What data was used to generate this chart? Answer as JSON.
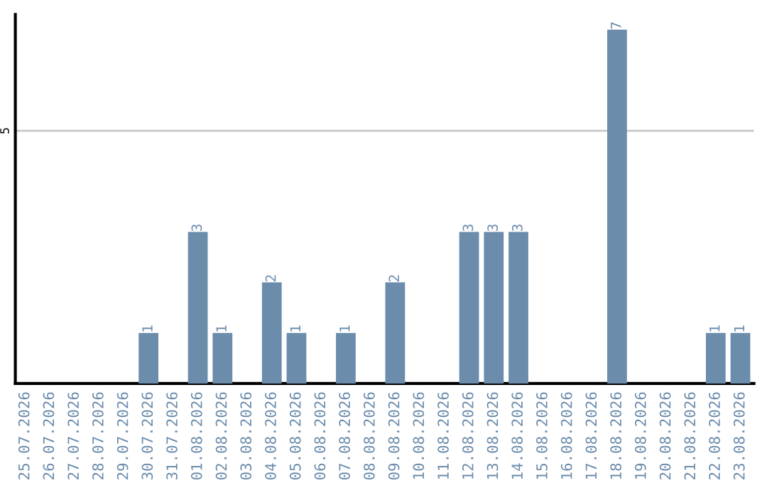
{
  "chart_data": {
    "type": "bar",
    "categories": [
      "25.07.2026",
      "26.07.2026",
      "27.07.2026",
      "28.07.2026",
      "29.07.2026",
      "30.07.2026",
      "31.07.2026",
      "01.08.2026",
      "02.08.2026",
      "03.08.2026",
      "04.08.2026",
      "05.08.2026",
      "06.08.2026",
      "07.08.2026",
      "08.08.2026",
      "09.08.2026",
      "10.08.2026",
      "11.08.2026",
      "12.08.2026",
      "13.08.2026",
      "14.08.2026",
      "15.08.2026",
      "16.08.2026",
      "17.08.2026",
      "18.08.2026",
      "19.08.2026",
      "20.08.2026",
      "21.08.2026",
      "22.08.2026",
      "23.08.2026"
    ],
    "values": [
      0,
      0,
      0,
      0,
      0,
      1,
      0,
      3,
      1,
      0,
      2,
      1,
      0,
      1,
      0,
      2,
      0,
      0,
      3,
      3,
      3,
      0,
      0,
      0,
      7,
      0,
      0,
      0,
      1,
      1
    ],
    "value_labels": [
      null,
      null,
      null,
      null,
      null,
      "1",
      null,
      "3",
      "1",
      null,
      "2",
      "1",
      null,
      "1",
      null,
      "2",
      null,
      null,
      "3",
      "3",
      "3",
      null,
      null,
      null,
      "7",
      null,
      null,
      null,
      "1",
      "1"
    ],
    "color": "#6b8cab",
    "ylim": [
      0,
      7.3
    ],
    "yticks": [
      5
    ],
    "grid": "y"
  }
}
